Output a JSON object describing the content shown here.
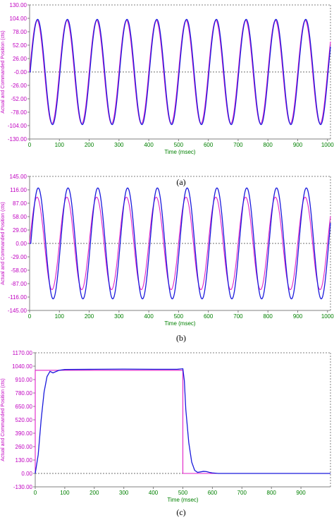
{
  "figure": {
    "captions": [
      "(a)",
      "(b)",
      "(c)"
    ]
  },
  "colors": {
    "actual": "#1a1adc",
    "commanded": "#e020c8",
    "tick_label": "#c000c0",
    "x_label": "#008000",
    "zero_line": "#404040",
    "frame": "#808080"
  },
  "chart_data": [
    {
      "type": "line",
      "panel": "a",
      "xlabel": "Time (msec)",
      "ylabel": "Actual and Commanded Position (cts)",
      "xlim": [
        0,
        1010
      ],
      "ylim": [
        -130,
        130
      ],
      "x_ticks": [
        "0",
        "100",
        "200",
        "300",
        "400",
        "500",
        "600",
        "700",
        "800",
        "900",
        "1000"
      ],
      "y_ticks": [
        "130.00",
        "104.00",
        "78.00",
        "52.00",
        "26.00",
        "-0.00",
        "-26.00",
        "-52.00",
        "-78.00",
        "-104.00",
        "-130.00"
      ],
      "grid": "dotted, top and right border",
      "series": [
        {
          "role": "commanded",
          "shape": "sine",
          "amplitude": 100,
          "period_ms": 100,
          "delay_ms": 0
        },
        {
          "role": "actual",
          "shape": "sine",
          "amplitude": 102,
          "period_ms": 100,
          "delay_ms": 2
        }
      ]
    },
    {
      "type": "line",
      "panel": "b",
      "xlabel": "Time (msec)",
      "ylabel": "Actual and Commanded Position (cts)",
      "xlim": [
        0,
        1010
      ],
      "ylim": [
        -145,
        145
      ],
      "x_ticks": [
        "0",
        "100",
        "200",
        "300",
        "400",
        "500",
        "600",
        "700",
        "800",
        "900",
        "1000"
      ],
      "y_ticks": [
        "145.00",
        "116.00",
        "87.00",
        "58.00",
        "29.00",
        "0.00",
        "-29.00",
        "-58.00",
        "-87.00",
        "-116.00",
        "-145.00"
      ],
      "grid": "dotted, top and right border",
      "series": [
        {
          "role": "commanded",
          "shape": "sine",
          "amplitude": 100,
          "period_ms": 100,
          "delay_ms": 0
        },
        {
          "role": "actual",
          "shape": "sine",
          "amplitude": 120,
          "period_ms": 100,
          "delay_ms": 4
        }
      ]
    },
    {
      "type": "line",
      "panel": "c",
      "xlabel": "Time (msec)",
      "ylabel": "Actual and Commanded Position (cts)",
      "xlim": [
        0,
        1000
      ],
      "ylim": [
        -130,
        1170
      ],
      "x_ticks": [
        "0",
        "100",
        "200",
        "300",
        "400",
        "500",
        "600",
        "700",
        "800",
        "900"
      ],
      "y_ticks": [
        "1170.00",
        "1040.00",
        "910.00",
        "780.00",
        "650.00",
        "520.00",
        "390.00",
        "260.00",
        "130.00",
        "0.00",
        "-130.00"
      ],
      "grid": "dotted, top and right border",
      "series": [
        {
          "role": "commanded",
          "x": [
            0,
            0,
            500,
            500,
            1000
          ],
          "y": [
            0,
            1000,
            1000,
            0,
            0
          ]
        },
        {
          "role": "actual",
          "x": [
            0,
            10,
            20,
            30,
            40,
            50,
            60,
            80,
            100,
            200,
            300,
            400,
            480,
            500,
            505,
            510,
            520,
            530,
            540,
            550,
            560,
            570,
            580,
            590,
            600,
            620,
            650,
            700,
            1000
          ],
          "y": [
            0,
            180,
            520,
            790,
            940,
            990,
            975,
            1000,
            1008,
            1010,
            1012,
            1010,
            1010,
            1015,
            900,
            620,
            300,
            110,
            30,
            10,
            15,
            20,
            18,
            10,
            5,
            0,
            0,
            0,
            0
          ]
        }
      ]
    }
  ]
}
